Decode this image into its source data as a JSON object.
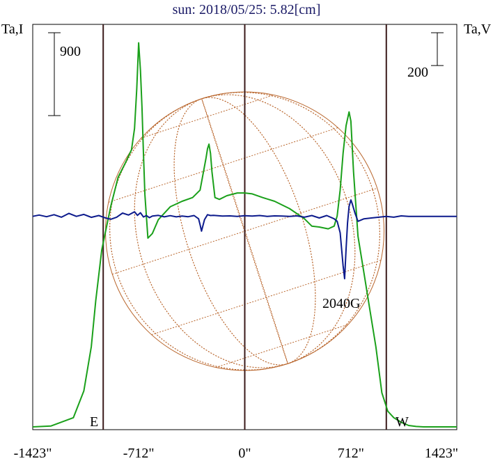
{
  "chart_data": {
    "type": "line",
    "title": "sun: 2018/05/25: 5.82[cm]",
    "left_axis_label": "Ta,I",
    "right_axis_label": "Ta,V",
    "x_tick_labels": [
      "-1423\"",
      "-712\"",
      "0\"",
      "712\"",
      "1423\""
    ],
    "x_ticks": [
      -1423,
      -712,
      0,
      712,
      1423
    ],
    "xlim": [
      -1423,
      1423
    ],
    "limb_markers": {
      "east": {
        "label": "E",
        "x": -950
      },
      "west": {
        "label": "W",
        "x": 950
      }
    },
    "scale_bars": [
      {
        "name": "intensity-scale",
        "label": "900",
        "value": 900,
        "axis": "left"
      },
      {
        "name": "polarization-scale",
        "label": "200",
        "value": 200,
        "axis": "right"
      }
    ],
    "annotations": [
      {
        "text": "2040G",
        "x": 650,
        "axis": "right"
      }
    ],
    "series": [
      {
        "key": "intensity",
        "axis": "left",
        "color": "#1aa01a",
        "x": [
          -1423,
          -1300,
          -1150,
          -1080,
          -1030,
          -1000,
          -960,
          -900,
          -850,
          -800,
          -760,
          -740,
          -725,
          -712,
          -700,
          -690,
          -680,
          -670,
          -650,
          -620,
          -580,
          -500,
          -420,
          -350,
          -300,
          -260,
          -250,
          -240,
          -230,
          -220,
          -200,
          -170,
          -120,
          -50,
          0,
          50,
          120,
          200,
          300,
          400,
          450,
          500,
          560,
          600,
          620,
          640,
          660,
          680,
          700,
          712,
          730,
          760,
          800,
          840,
          880,
          920,
          960,
          1000,
          1050,
          1100,
          1150,
          1200,
          1300,
          1423
        ],
        "y": [
          30,
          40,
          130,
          420,
          900,
          1400,
          1950,
          2420,
          2740,
          2900,
          3040,
          3270,
          3700,
          4200,
          3900,
          3500,
          3000,
          2550,
          2080,
          2130,
          2280,
          2420,
          2480,
          2520,
          2600,
          2950,
          3050,
          3100,
          3000,
          2800,
          2520,
          2500,
          2540,
          2570,
          2570,
          2560,
          2520,
          2480,
          2400,
          2290,
          2210,
          2200,
          2180,
          2210,
          2320,
          2600,
          3000,
          3300,
          3450,
          3350,
          2800,
          2100,
          1700,
          1300,
          900,
          400,
          200,
          130,
          80,
          45,
          35,
          30,
          30,
          30
        ]
      },
      {
        "key": "circular-polarization",
        "axis": "right",
        "color": "#0c1a8c",
        "x": [
          -1423,
          -1380,
          -1330,
          -1280,
          -1230,
          -1180,
          -1130,
          -1080,
          -1030,
          -980,
          -940,
          -900,
          -860,
          -820,
          -780,
          -740,
          -720,
          -700,
          -680,
          -660,
          -640,
          -620,
          -580,
          -540,
          -500,
          -460,
          -420,
          -380,
          -340,
          -310,
          -300,
          -290,
          -270,
          -250,
          -230,
          -210,
          -180,
          -150,
          -100,
          -50,
          0,
          50,
          100,
          150,
          200,
          250,
          300,
          350,
          400,
          450,
          500,
          550,
          600,
          620,
          640,
          660,
          670,
          680,
          690,
          700,
          712,
          720,
          740,
          760,
          800,
          850,
          900,
          950,
          1000,
          1050,
          1100,
          1200,
          1300,
          1423
        ],
        "y": [
          0,
          8,
          -2,
          10,
          -5,
          18,
          0,
          12,
          -6,
          5,
          -8,
          -18,
          -5,
          20,
          8,
          28,
          6,
          22,
          -4,
          5,
          -8,
          2,
          6,
          -3,
          4,
          -3,
          2,
          -2,
          5,
          -15,
          -50,
          -90,
          -20,
          10,
          5,
          6,
          4,
          2,
          3,
          0,
          4,
          2,
          5,
          0,
          3,
          2,
          0,
          3,
          -5,
          5,
          -10,
          5,
          -15,
          -30,
          -100,
          -300,
          -380,
          -200,
          -40,
          60,
          100,
          80,
          20,
          -30,
          -15,
          -10,
          -5,
          0,
          -5,
          3,
          0,
          0,
          0,
          0
        ]
      }
    ],
    "intensity_ylim": [
      0,
      4400
    ],
    "polarization_ylim": [
      -1300,
      1170
    ],
    "background_overlay": "solar-disk-grid",
    "grid": false
  }
}
